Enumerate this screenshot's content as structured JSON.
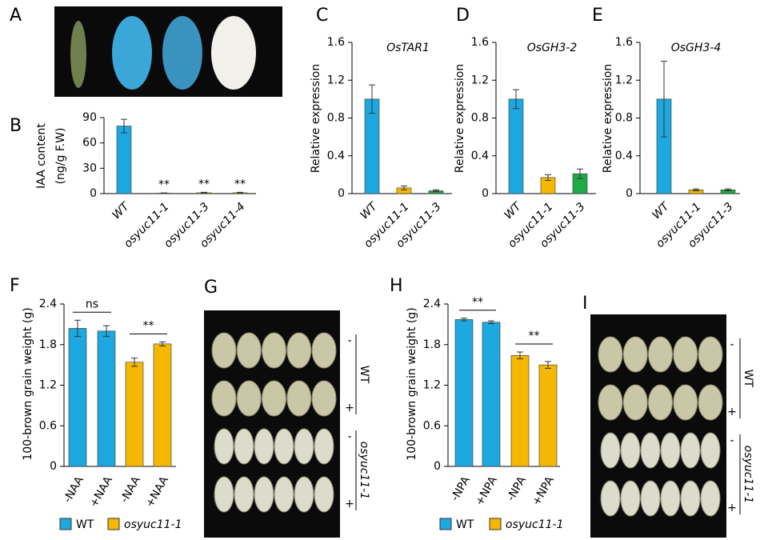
{
  "chart_data": [
    {
      "type": "bar",
      "label": "B",
      "ylabel": [
        "IAA content",
        "(ng/g F.W)"
      ],
      "categories": [
        "WT",
        "osyuc11-1",
        "osyuc11-3",
        "osyuc11-4"
      ],
      "values": [
        80,
        0.5,
        1,
        1
      ],
      "errors": [
        8,
        0.3,
        0.5,
        0.5
      ],
      "colors": [
        "#1ea8e0",
        "#f5b800",
        "#f5b800",
        "#f5b800"
      ],
      "annotations": [
        null,
        "**",
        "**",
        "**"
      ],
      "ylim": [
        0,
        90
      ],
      "yticks": [
        0,
        30,
        60,
        90
      ]
    },
    {
      "type": "bar",
      "label": "C",
      "title": "OsTAR1",
      "ylabel": [
        "Relative expression"
      ],
      "categories": [
        "WT",
        "osyuc11-1",
        "osyuc11-3"
      ],
      "values": [
        1.0,
        0.06,
        0.03
      ],
      "errors": [
        0.15,
        0.02,
        0.01
      ],
      "colors": [
        "#1ea8e0",
        "#f5b800",
        "#1faa4a"
      ],
      "ylim": [
        0,
        1.6
      ],
      "yticks": [
        0,
        0.4,
        0.8,
        1.2,
        1.6
      ]
    },
    {
      "type": "bar",
      "label": "D",
      "title": "OsGH3-2",
      "ylabel": [
        "Relative expression"
      ],
      "categories": [
        "WT",
        "osyuc11-1",
        "osyuc11-3"
      ],
      "values": [
        1.0,
        0.17,
        0.21
      ],
      "errors": [
        0.1,
        0.03,
        0.05
      ],
      "colors": [
        "#1ea8e0",
        "#f5b800",
        "#1faa4a"
      ],
      "ylim": [
        0,
        1.6
      ],
      "yticks": [
        0,
        0.4,
        0.8,
        1.2,
        1.6
      ]
    },
    {
      "type": "bar",
      "label": "E",
      "title": "OsGH3-4",
      "ylabel": [
        "Relative expression"
      ],
      "categories": [
        "WT",
        "osyuc11-1",
        "osyuc11-3"
      ],
      "values": [
        1.0,
        0.04,
        0.04
      ],
      "errors": [
        0.4,
        0.01,
        0.01
      ],
      "colors": [
        "#1ea8e0",
        "#f5b800",
        "#1faa4a"
      ],
      "ylim": [
        0,
        1.6
      ],
      "yticks": [
        0,
        0.4,
        0.8,
        1.2,
        1.6
      ]
    },
    {
      "type": "bar",
      "label": "F",
      "ylabel": [
        "100-brown grain weight (g)"
      ],
      "categories": [
        "-NAA",
        "+NAA",
        "-NAA",
        "+NAA"
      ],
      "series": [
        {
          "name": "WT",
          "color": "#1ea8e0",
          "values": [
            2.04,
            2.0,
            null,
            null
          ],
          "errors": [
            0.12,
            0.08,
            null,
            null
          ]
        },
        {
          "name": "osyuc11-1",
          "color": "#f5b800",
          "values": [
            null,
            null,
            1.54,
            1.81
          ],
          "errors": [
            null,
            null,
            0.06,
            0.03
          ]
        }
      ],
      "annotations": [
        "ns",
        "**"
      ],
      "ylim": [
        0,
        2.4
      ],
      "yticks": [
        0,
        0.6,
        1.2,
        1.8,
        2.4
      ]
    },
    {
      "type": "bar",
      "label": "H",
      "ylabel": [
        "100-brown grain weight (g)"
      ],
      "categories": [
        "-NPA",
        "+NPA",
        "-NPA",
        "+NPA"
      ],
      "series": [
        {
          "name": "WT",
          "color": "#1ea8e0",
          "values": [
            2.17,
            2.13,
            null,
            null
          ],
          "errors": [
            0.02,
            0.02,
            null,
            null
          ]
        },
        {
          "name": "osyuc11-1",
          "color": "#f5b800",
          "values": [
            null,
            null,
            1.64,
            1.5
          ],
          "errors": [
            null,
            null,
            0.05,
            0.05
          ]
        }
      ],
      "annotations": [
        "**",
        "**"
      ],
      "ylim": [
        0,
        2.4
      ],
      "yticks": [
        0,
        0.6,
        1.2,
        1.8,
        2.4
      ]
    }
  ],
  "images": [
    {
      "label": "A"
    },
    {
      "label": "G",
      "rows": [
        "-",
        "+",
        "-",
        "+"
      ],
      "groups": [
        "WT",
        "osyuc11-1"
      ]
    },
    {
      "label": "I",
      "rows": [
        "-",
        "+",
        "-",
        "+"
      ],
      "groups": [
        "WT",
        "osyuc11-1"
      ]
    }
  ]
}
